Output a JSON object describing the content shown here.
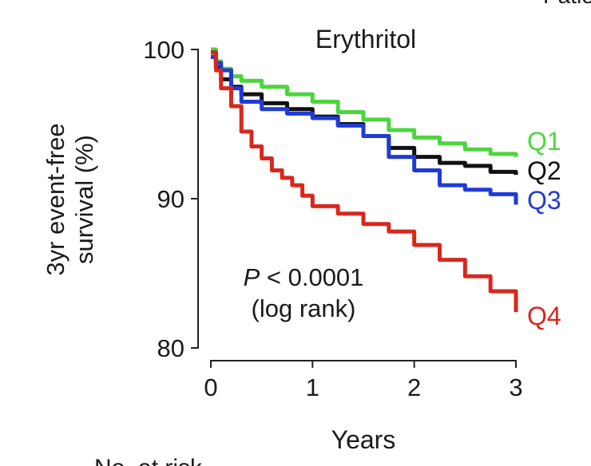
{
  "chart_data": {
    "type": "line",
    "title": "Erythritol",
    "xlabel": "Years",
    "ylabel": [
      "3yr event-free",
      "survival (%)"
    ],
    "xlim": [
      0,
      3
    ],
    "ylim": [
      80,
      100
    ],
    "xticks": [
      0,
      1,
      2,
      3
    ],
    "yticks": [
      80,
      90,
      100
    ],
    "grid": false,
    "annotation": {
      "p_italic": "P",
      "p_rest": " < 0.0001",
      "line2": "(log rank)"
    },
    "series": [
      {
        "name": "Q1",
        "color": "#4cd63c",
        "x": [
          0,
          0.05,
          0.1,
          0.2,
          0.3,
          0.5,
          0.75,
          1.0,
          1.25,
          1.5,
          1.75,
          2.0,
          2.25,
          2.5,
          2.75,
          3.0
        ],
        "y": [
          100,
          99.2,
          98.7,
          98.2,
          97.9,
          97.5,
          97.0,
          96.5,
          95.8,
          95.3,
          94.6,
          94.1,
          93.7,
          93.3,
          93.0,
          92.8
        ]
      },
      {
        "name": "Q2",
        "color": "#111111",
        "x": [
          0,
          0.05,
          0.1,
          0.2,
          0.3,
          0.5,
          0.75,
          1.0,
          1.25,
          1.5,
          1.75,
          2.0,
          2.25,
          2.5,
          2.75,
          3.0
        ],
        "y": [
          99.8,
          98.8,
          98.0,
          97.5,
          97.0,
          96.4,
          96.0,
          95.5,
          95.0,
          94.2,
          93.4,
          92.8,
          92.4,
          92.2,
          91.8,
          91.6
        ]
      },
      {
        "name": "Q3",
        "color": "#1f3bd6",
        "x": [
          0,
          0.05,
          0.1,
          0.2,
          0.3,
          0.5,
          0.75,
          1.0,
          1.25,
          1.5,
          1.75,
          2.0,
          2.25,
          2.5,
          2.75,
          3.0
        ],
        "y": [
          99.5,
          99.1,
          98.6,
          97.4,
          96.5,
          96.0,
          95.7,
          95.4,
          94.9,
          94.2,
          92.8,
          91.9,
          90.9,
          90.6,
          90.3,
          89.6
        ]
      },
      {
        "name": "Q4",
        "color": "#d9271e",
        "x": [
          0,
          0.05,
          0.1,
          0.2,
          0.3,
          0.4,
          0.5,
          0.6,
          0.7,
          0.8,
          0.9,
          1.0,
          1.25,
          1.5,
          1.75,
          2.0,
          2.25,
          2.5,
          2.75,
          3.0
        ],
        "y": [
          99.8,
          98.6,
          97.4,
          96.2,
          94.5,
          93.5,
          92.7,
          91.9,
          91.4,
          90.9,
          90.2,
          89.5,
          89.0,
          88.3,
          87.8,
          86.9,
          85.9,
          84.8,
          83.8,
          82.4
        ]
      }
    ]
  },
  "top_right_fragment": "Patie",
  "bottom_fragment": "No. at risk"
}
